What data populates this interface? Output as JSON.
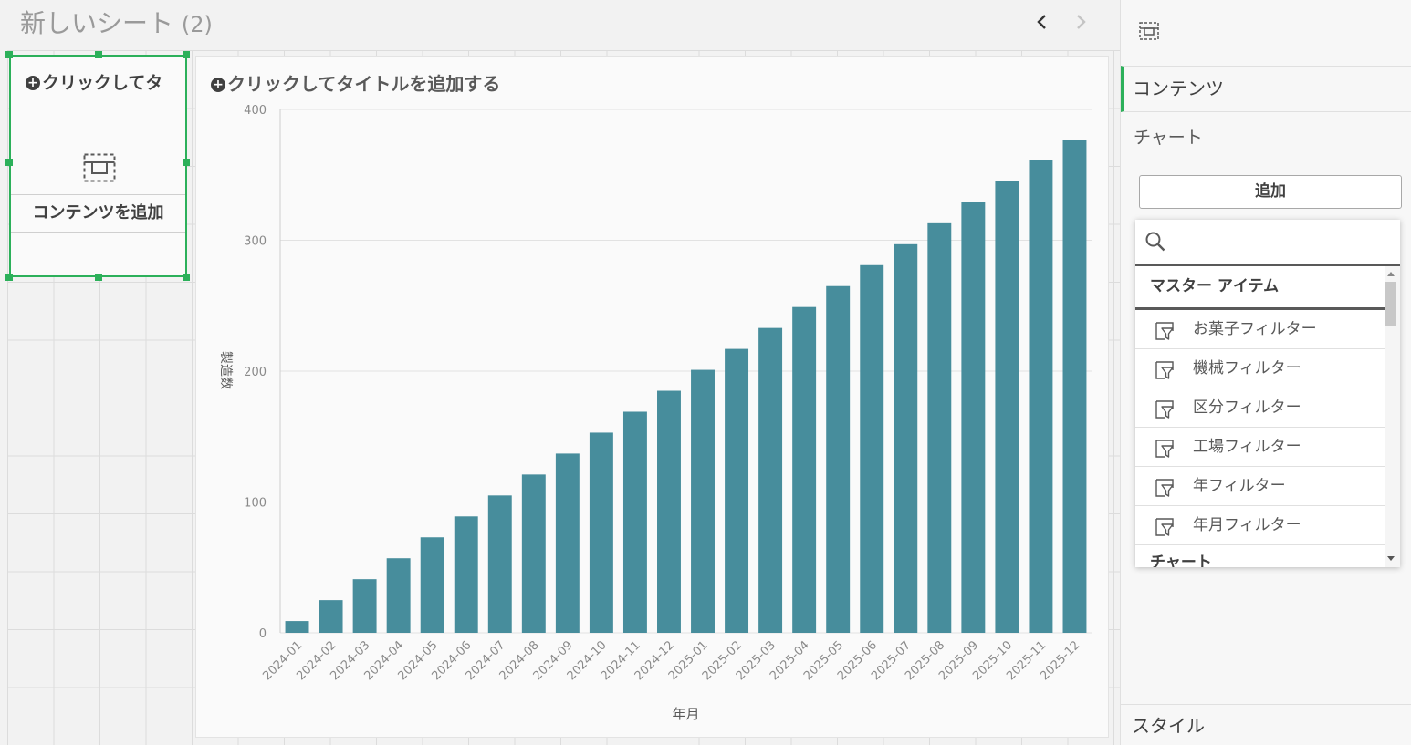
{
  "sheet": {
    "title": "新しいシート",
    "title_number": "(2)",
    "prev_icon": "chevron-left-icon",
    "next_icon": "chevron-right-icon"
  },
  "placeholder": {
    "title": "クリックしてタ",
    "add_content_label": "コンテンツを追加",
    "icon": "placeholder-object-icon"
  },
  "chart": {
    "title": "クリックしてタイトルを追加する"
  },
  "chart_data": {
    "type": "bar",
    "title": "",
    "xlabel": "年月",
    "ylabel": "製造数",
    "ylim": [
      0,
      400
    ],
    "yticks": [
      0,
      100,
      200,
      300,
      400
    ],
    "categories": [
      "2024-01",
      "2024-02",
      "2024-03",
      "2024-04",
      "2024-05",
      "2024-06",
      "2024-07",
      "2024-08",
      "2024-09",
      "2024-10",
      "2024-11",
      "2024-12",
      "2025-01",
      "2025-02",
      "2025-03",
      "2025-04",
      "2025-05",
      "2025-06",
      "2025-07",
      "2025-08",
      "2025-09",
      "2025-10",
      "2025-11",
      "2025-12"
    ],
    "values": [
      9,
      25,
      41,
      57,
      73,
      89,
      105,
      121,
      137,
      153,
      169,
      185,
      201,
      217,
      233,
      249,
      265,
      281,
      297,
      313,
      329,
      345,
      361,
      377
    ],
    "bar_color": "#478d9c",
    "grid": true,
    "legend": "none"
  },
  "panel": {
    "icon": "object-outline-icon",
    "content_tab": "コンテンツ",
    "chart_label": "チャート",
    "add_button": "追加",
    "search_placeholder": "",
    "section_master": "マスター アイテム",
    "items": [
      {
        "label": "お菓子フィルター",
        "icon": "filter-pane-icon"
      },
      {
        "label": "機械フィルター",
        "icon": "filter-pane-icon"
      },
      {
        "label": "区分フィルター",
        "icon": "filter-pane-icon"
      },
      {
        "label": "工場フィルター",
        "icon": "filter-pane-icon"
      },
      {
        "label": "年フィルター",
        "icon": "filter-pane-icon"
      },
      {
        "label": "年月フィルター",
        "icon": "filter-pane-icon"
      }
    ],
    "section_chart": "チャート",
    "style_tab": "スタイル"
  },
  "colors": {
    "accent": "#2cb05a",
    "bar": "#478d9c"
  }
}
